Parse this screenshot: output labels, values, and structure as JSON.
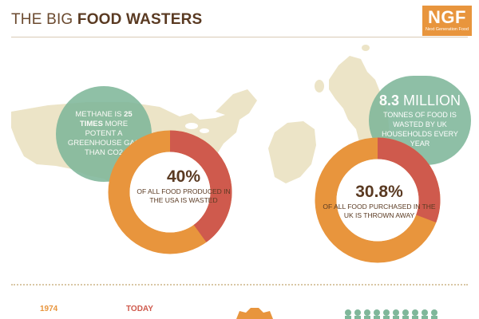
{
  "header": {
    "title_light": "THE BIG ",
    "title_bold": "FOOD WASTERS",
    "logo_text": "NGF",
    "logo_subtext": "Next Generation Food"
  },
  "usa": {
    "bubble_pre": "METHANE IS ",
    "bubble_bold": "25 TIMES",
    "bubble_post": " MORE POTENT A GREENHOUSE GAS THAN CO2",
    "percent": "40%",
    "percent_text": "OF ALL FOOD PRODUCED IN THE USA IS WASTED",
    "wasted_fraction": 0.4
  },
  "uk": {
    "bubble_number": "8.3",
    "bubble_unit": "MILLION",
    "bubble_text": "TONNES OF FOOD IS WASTED BY UK HOUSEHOLDS EVERY YEAR",
    "percent": "30.8%",
    "percent_text": "OF ALL FOOD PURCHASED IN THE UK IS THROWN AWAY",
    "wasted_fraction": 0.308
  },
  "timeline": {
    "year_start": "1974",
    "year_end": "TODAY"
  },
  "colors": {
    "orange": "#e8953d",
    "red": "#cf5a4d",
    "green": "#7fb79a",
    "map": "#ece4c7",
    "brown": "#5a3a22"
  }
}
